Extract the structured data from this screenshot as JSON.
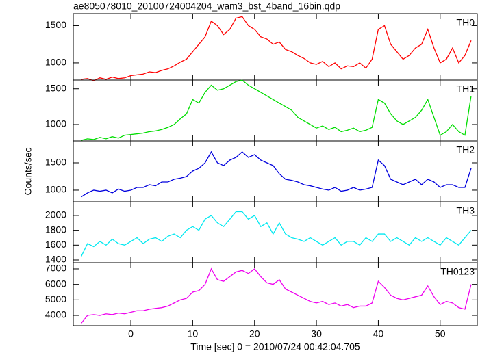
{
  "chart_data": [
    {
      "type": "line",
      "title": "ae805078010_20100724004204_wam3_bst_4band_16bin.qdp",
      "x": [
        -8,
        -7,
        -6,
        -5,
        -4,
        -3,
        -2,
        -1,
        0,
        1,
        2,
        3,
        4,
        5,
        6,
        7,
        8,
        9,
        10,
        11,
        12,
        13,
        14,
        15,
        16,
        17,
        18,
        19,
        20,
        21,
        22,
        23,
        24,
        25,
        26,
        27,
        28,
        29,
        30,
        31,
        32,
        33,
        34,
        35,
        36,
        37,
        38,
        39,
        40,
        41,
        42,
        43,
        44,
        45,
        46,
        47,
        48,
        49,
        50,
        51,
        52,
        53,
        54,
        55
      ],
      "series": [
        {
          "name": "TH0",
          "color": "#ff0000",
          "values": [
            780,
            790,
            760,
            800,
            780,
            810,
            790,
            800,
            830,
            840,
            850,
            880,
            870,
            900,
            920,
            960,
            1010,
            1050,
            1150,
            1250,
            1350,
            1560,
            1500,
            1380,
            1450,
            1600,
            1620,
            1500,
            1450,
            1350,
            1320,
            1250,
            1280,
            1180,
            1150,
            1100,
            1060,
            1000,
            980,
            1020,
            950,
            1000,
            920,
            960,
            950,
            1000,
            930,
            1050,
            1450,
            1500,
            1250,
            1150,
            1050,
            1100,
            1200,
            1250,
            1450,
            1200,
            1000,
            1050,
            1200,
            1000,
            1100,
            1300
          ]
        }
      ],
      "xlim": [
        -9.3,
        56
      ],
      "xticks": [
        0,
        10,
        20,
        30,
        40,
        50
      ],
      "ylim": [
        770,
        1660
      ],
      "yticks": [
        1000,
        1500
      ]
    },
    {
      "type": "line",
      "x": [
        -8,
        -7,
        -6,
        -5,
        -4,
        -3,
        -2,
        -1,
        0,
        1,
        2,
        3,
        4,
        5,
        6,
        7,
        8,
        9,
        10,
        11,
        12,
        13,
        14,
        15,
        16,
        17,
        18,
        19,
        20,
        21,
        22,
        23,
        24,
        25,
        26,
        27,
        28,
        29,
        30,
        31,
        32,
        33,
        34,
        35,
        36,
        37,
        38,
        39,
        40,
        41,
        42,
        43,
        44,
        45,
        46,
        47,
        48,
        49,
        50,
        51,
        52,
        53,
        54,
        55
      ],
      "series": [
        {
          "name": "TH1",
          "color": "#00dd00",
          "values": [
            780,
            800,
            790,
            820,
            800,
            830,
            810,
            850,
            860,
            870,
            880,
            900,
            910,
            930,
            960,
            1000,
            1080,
            1150,
            1350,
            1300,
            1450,
            1550,
            1480,
            1500,
            1550,
            1600,
            1620,
            1550,
            1500,
            1450,
            1400,
            1350,
            1300,
            1250,
            1200,
            1100,
            1050,
            1000,
            950,
            980,
            930,
            960,
            900,
            920,
            950,
            900,
            920,
            960,
            1350,
            1300,
            1150,
            1050,
            1000,
            1050,
            1100,
            1200,
            1350,
            1100,
            850,
            900,
            1000,
            900,
            850,
            1400
          ]
        }
      ],
      "xlim": [
        -9.3,
        56
      ],
      "xticks": [
        0,
        10,
        20,
        30,
        40,
        50
      ],
      "ylim": [
        770,
        1622
      ],
      "yticks": [
        1000,
        1500
      ]
    },
    {
      "type": "line",
      "ylabel": "Counts/sec",
      "x": [
        -8,
        -7,
        -6,
        -5,
        -4,
        -3,
        -2,
        -1,
        0,
        1,
        2,
        3,
        4,
        5,
        6,
        7,
        8,
        9,
        10,
        11,
        12,
        13,
        14,
        15,
        16,
        17,
        18,
        19,
        20,
        21,
        22,
        23,
        24,
        25,
        26,
        27,
        28,
        29,
        30,
        31,
        32,
        33,
        34,
        35,
        36,
        37,
        38,
        39,
        40,
        41,
        42,
        43,
        44,
        45,
        46,
        47,
        48,
        49,
        50,
        51,
        52,
        53,
        54,
        55
      ],
      "series": [
        {
          "name": "TH2",
          "color": "#0000dd",
          "values": [
            880,
            950,
            1000,
            980,
            1000,
            950,
            1020,
            980,
            1000,
            1050,
            1050,
            1100,
            1080,
            1150,
            1150,
            1200,
            1220,
            1250,
            1350,
            1400,
            1500,
            1700,
            1500,
            1450,
            1550,
            1600,
            1700,
            1600,
            1650,
            1550,
            1500,
            1450,
            1300,
            1200,
            1180,
            1150,
            1100,
            1080,
            1050,
            1020,
            1000,
            1050,
            980,
            1000,
            1050,
            1000,
            1020,
            1050,
            1550,
            1450,
            1200,
            1150,
            1100,
            1150,
            1200,
            1100,
            1200,
            1150,
            1050,
            1100,
            1100,
            1050,
            1050,
            1400
          ]
        }
      ],
      "xlim": [
        -9.3,
        56
      ],
      "xticks": [
        0,
        10,
        20,
        30,
        40,
        50
      ],
      "ylim": [
        787,
        1900
      ],
      "yticks": [
        1000,
        1500
      ]
    },
    {
      "type": "line",
      "x": [
        -8,
        -7,
        -6,
        -5,
        -4,
        -3,
        -2,
        -1,
        0,
        1,
        2,
        3,
        4,
        5,
        6,
        7,
        8,
        9,
        10,
        11,
        12,
        13,
        14,
        15,
        16,
        17,
        18,
        19,
        20,
        21,
        22,
        23,
        24,
        25,
        26,
        27,
        28,
        29,
        30,
        31,
        32,
        33,
        34,
        35,
        36,
        37,
        38,
        39,
        40,
        41,
        42,
        43,
        44,
        45,
        46,
        47,
        48,
        49,
        50,
        51,
        52,
        53,
        54,
        55
      ],
      "series": [
        {
          "name": "TH3",
          "color": "#00e8f0",
          "values": [
            1450,
            1620,
            1580,
            1650,
            1600,
            1680,
            1620,
            1600,
            1650,
            1700,
            1620,
            1680,
            1700,
            1650,
            1720,
            1750,
            1700,
            1800,
            1850,
            1800,
            1950,
            2000,
            1900,
            1850,
            1950,
            2050,
            2050,
            1950,
            2000,
            1850,
            1900,
            1750,
            1900,
            1750,
            1700,
            1680,
            1650,
            1700,
            1650,
            1600,
            1650,
            1700,
            1600,
            1650,
            1650,
            1600,
            1700,
            1650,
            1750,
            1750,
            1650,
            1700,
            1650,
            1600,
            1700,
            1650,
            1700,
            1650,
            1600,
            1700,
            1650,
            1600,
            1700,
            1800
          ]
        }
      ],
      "xlim": [
        -9.3,
        56
      ],
      "xticks": [
        0,
        10,
        20,
        30,
        40,
        50
      ],
      "ylim": [
        1363,
        2184
      ],
      "yticks": [
        1400,
        1600,
        1800,
        2000
      ]
    },
    {
      "type": "line",
      "xlabel": "Time [sec] 0 = 2010/07/24 00:42:04.705",
      "x": [
        -8,
        -7,
        -6,
        -5,
        -4,
        -3,
        -2,
        -1,
        0,
        1,
        2,
        3,
        4,
        5,
        6,
        7,
        8,
        9,
        10,
        11,
        12,
        13,
        14,
        15,
        16,
        17,
        18,
        19,
        20,
        21,
        22,
        23,
        24,
        25,
        26,
        27,
        28,
        29,
        30,
        31,
        32,
        33,
        34,
        35,
        36,
        37,
        38,
        39,
        40,
        41,
        42,
        43,
        44,
        45,
        46,
        47,
        48,
        49,
        50,
        51,
        52,
        53,
        54,
        55
      ],
      "series": [
        {
          "name": "TH0123",
          "color": "#ee00ee",
          "values": [
            3500,
            4000,
            4050,
            4000,
            4100,
            4050,
            4150,
            4100,
            4200,
            4300,
            4300,
            4400,
            4450,
            4500,
            4600,
            4800,
            5000,
            5100,
            5500,
            5600,
            6000,
            7000,
            6300,
            6200,
            6500,
            6800,
            6900,
            6700,
            7000,
            6500,
            6100,
            6000,
            6300,
            5700,
            5500,
            5300,
            5100,
            4900,
            4800,
            4900,
            4700,
            4800,
            4600,
            4700,
            4500,
            4600,
            4600,
            4800,
            6200,
            5800,
            5300,
            5100,
            5000,
            5100,
            5200,
            5300,
            5900,
            5200,
            4700,
            4900,
            4800,
            4500,
            4400,
            6000
          ]
        }
      ],
      "xlim": [
        -9.3,
        56
      ],
      "xticks": [
        0,
        10,
        20,
        30,
        40,
        50
      ],
      "ylim": [
        3340,
        7396
      ],
      "yticks": [
        4000,
        5000,
        6000,
        7000
      ]
    }
  ]
}
